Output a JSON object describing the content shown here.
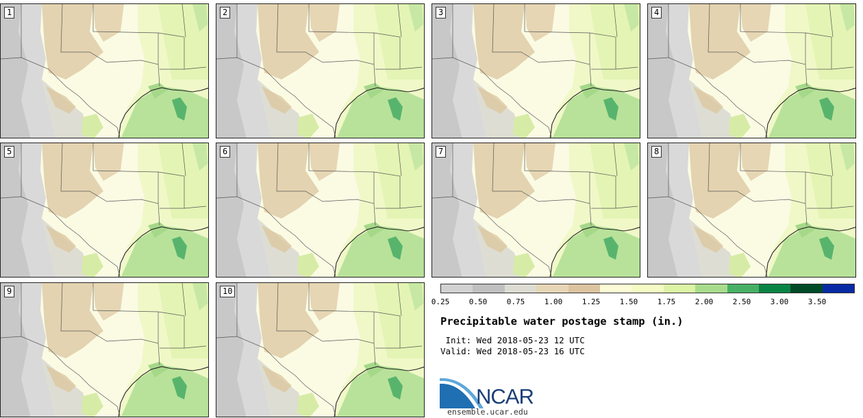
{
  "panels": [
    "1",
    "2",
    "3",
    "4",
    "5",
    "6",
    "7",
    "8",
    "9",
    "10"
  ],
  "legend": {
    "colors": [
      "#d2d2d2",
      "#c0c0c0",
      "#dcdcd2",
      "#e6d6b6",
      "#dcc4a0",
      "#fcfcd6",
      "#f4fcc4",
      "#dcf4a4",
      "#a8dc8c",
      "#48b064",
      "#0a8444",
      "#004a28",
      "#082aa4"
    ],
    "ticks": [
      "0.25",
      "0.50",
      "0.75",
      "1.00",
      "1.25",
      "1.50",
      "1.75",
      "2.00",
      "2.50",
      "3.00",
      "3.50"
    ]
  },
  "title": "Precipitable water postage stamp (in.)",
  "init": " Init: Wed 2018-05-23 12 UTC",
  "valid": "Valid: Wed 2018-05-23 16 UTC",
  "logo_text": "NCAR",
  "url": "ensemble.ucar.edu"
}
